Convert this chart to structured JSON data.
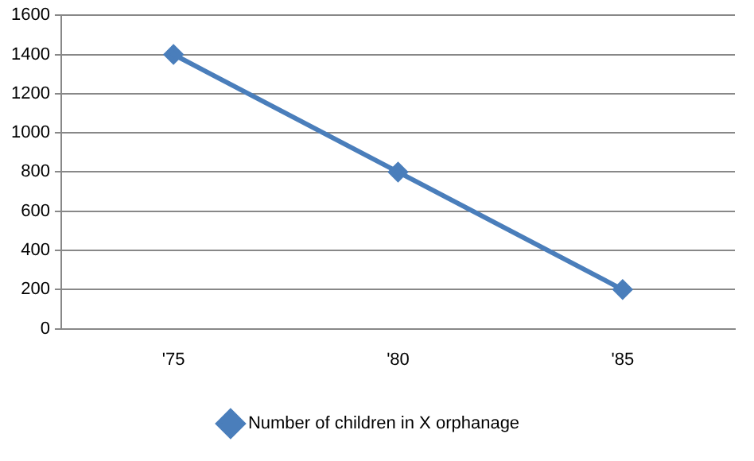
{
  "chart_data": {
    "type": "line",
    "categories": [
      "'75",
      "'80",
      "'85"
    ],
    "series": [
      {
        "name": "Number of children in X orphanage",
        "color": "#4a7ebb",
        "values": [
          1400,
          800,
          200
        ]
      }
    ],
    "ylim": [
      0,
      1600
    ],
    "yticks": [
      0,
      200,
      400,
      600,
      800,
      1000,
      1200,
      1400,
      1600
    ],
    "grid": "y",
    "legend": "bottom",
    "marker": "diamond",
    "line_style": "solid"
  }
}
